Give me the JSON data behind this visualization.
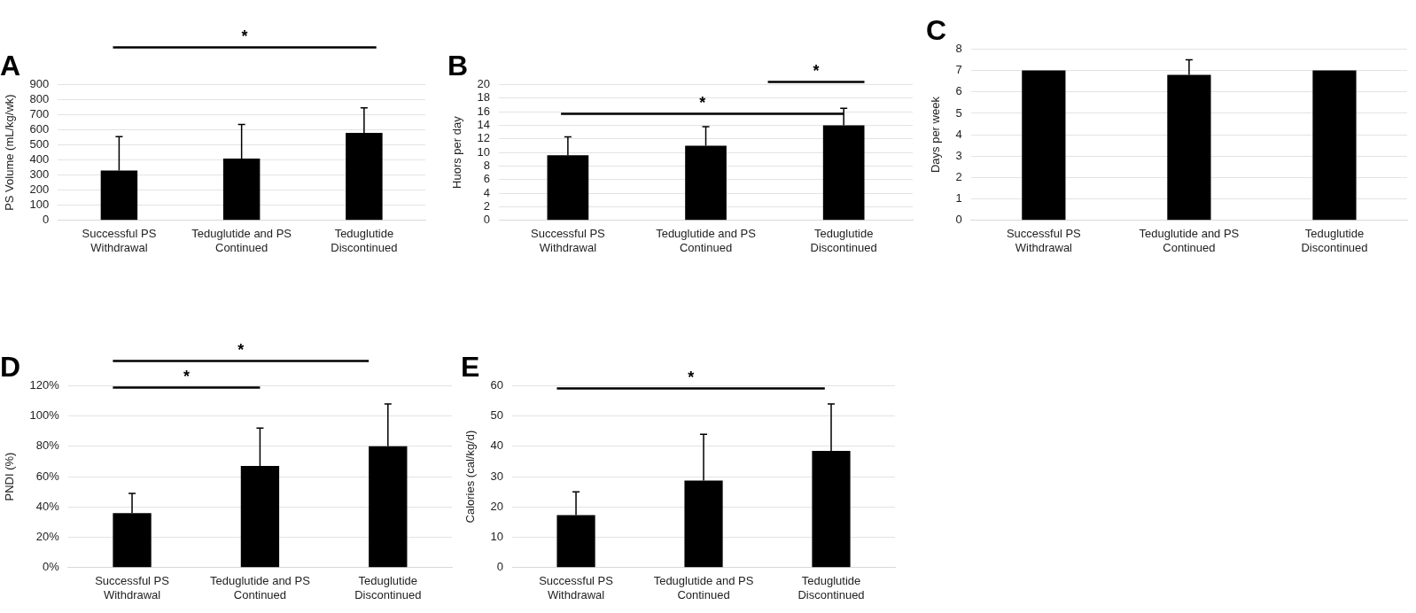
{
  "chart_data": [
    {
      "type": "bar",
      "title": "A",
      "ylabel": "PS Volume (mL/kg/wk)",
      "categories": [
        "Successful PS Withdrawal",
        "Teduglutide and PS Continued",
        "Teduglutide Discontinued"
      ],
      "values": [
        330,
        410,
        580
      ],
      "errors": [
        [
          330,
          555
        ],
        [
          410,
          635
        ],
        [
          580,
          745
        ]
      ],
      "color": "#000000",
      "ylim": [
        0,
        900
      ],
      "yticks": [
        0,
        100,
        200,
        300,
        400,
        500,
        600,
        700,
        800,
        900
      ],
      "grid": "y",
      "annotations": [
        "*"
      ]
    },
    {
      "type": "bar",
      "title": "B",
      "ylabel": "Huors per day",
      "categories": [
        "Successful PS Withdrawal",
        "Teduglutide and PS Continued",
        "Teduglutide Discontinued"
      ],
      "values": [
        9.6,
        11.0,
        14.0
      ],
      "errors": [
        [
          9.6,
          12.3
        ],
        [
          11.0,
          13.8
        ],
        [
          14.0,
          16.5
        ]
      ],
      "color": "#000000",
      "ylim": [
        0,
        20
      ],
      "yticks": [
        0,
        2,
        4,
        6,
        8,
        10,
        12,
        14,
        16,
        18,
        20
      ],
      "grid": "y",
      "annotations": [
        "*",
        "*"
      ]
    },
    {
      "type": "bar",
      "title": "C",
      "ylabel": "Days per week",
      "categories": [
        "Successful PS Withdrawal",
        "Teduglutide and PS Continued",
        "Teduglutide Discontinued"
      ],
      "values": [
        7,
        6.8,
        7
      ],
      "errors": [
        null,
        [
          6.8,
          7.5
        ],
        null
      ],
      "color": "#000000",
      "ylim": [
        0,
        8
      ],
      "yticks": [
        0,
        1,
        2,
        3,
        4,
        5,
        6,
        7,
        8
      ],
      "grid": "y"
    },
    {
      "type": "bar",
      "title": "D",
      "ylabel": "PNDI (%)",
      "categories": [
        "Successful PS Withdrawal",
        "Teduglutide and PS Continued",
        "Teduglutide Discontinued"
      ],
      "values": [
        36,
        67,
        80
      ],
      "errors": [
        [
          36,
          49
        ],
        [
          67,
          92
        ],
        [
          80,
          108
        ]
      ],
      "color": "#000000",
      "ylim": [
        0,
        120
      ],
      "yticks": [
        {
          "value": 0,
          "label": "0%"
        },
        {
          "value": 20,
          "label": "20%"
        },
        {
          "value": 40,
          "label": "40%"
        },
        {
          "value": 60,
          "label": "60%"
        },
        {
          "value": 80,
          "label": "80%"
        },
        {
          "value": 100,
          "label": "100%"
        },
        {
          "value": 120,
          "label": "120%"
        }
      ],
      "grid": "y",
      "annotations": [
        "*",
        "*"
      ]
    },
    {
      "type": "bar",
      "title": "E",
      "ylabel": "Calories (cal/kg/d)",
      "categories": [
        "Successful PS Withdrawal",
        "Teduglutide and PS Continued",
        "Teduglutide Discontinued"
      ],
      "values": [
        17.3,
        28.7,
        38.5
      ],
      "errors": [
        [
          17.3,
          25
        ],
        [
          28.7,
          44
        ],
        [
          38.5,
          54
        ]
      ],
      "color": "#000000",
      "ylim": [
        0,
        60
      ],
      "yticks": [
        0,
        10,
        20,
        30,
        40,
        50,
        60
      ],
      "grid": "y",
      "annotations": [
        "*"
      ]
    }
  ]
}
